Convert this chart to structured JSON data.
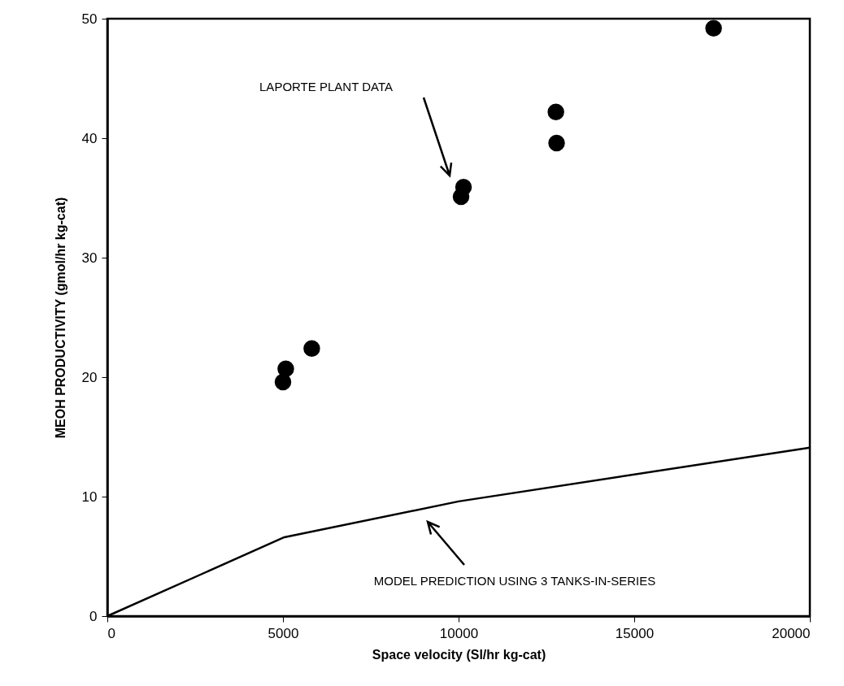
{
  "chart_data": {
    "type": "scatter",
    "xlabel": "Space velocity (Sl/hr kg-cat)",
    "ylabel": "MEOH  PRODUCTIVITY  (gmol/hr  kg-cat)",
    "xlim": [
      0,
      20000
    ],
    "ylim": [
      0,
      50
    ],
    "xticks": [
      0,
      5000,
      10000,
      15000,
      20000
    ],
    "yticks": [
      0,
      10,
      20,
      30,
      40,
      50
    ],
    "grid": false,
    "series": [
      {
        "marker": "circle",
        "color": "#000000",
        "x": [
          5000,
          5080,
          5820,
          10070,
          10140,
          12770,
          12790,
          17260
        ],
        "values": [
          19.6,
          20.7,
          22.4,
          35.1,
          35.9,
          42.2,
          39.6,
          49.2
        ]
      },
      {
        "type": "line",
        "color": "#000000",
        "line_style": "solid",
        "x": [
          0,
          5040,
          10000,
          20000
        ],
        "values": [
          0,
          6.6,
          9.6,
          14.1
        ]
      }
    ],
    "annotations": [
      "LAPORTE PLANT DATA",
      "MODEL PREDICTION USING 3 TANKS-IN-SERIES"
    ]
  }
}
